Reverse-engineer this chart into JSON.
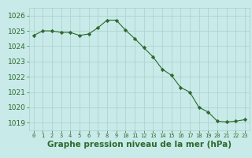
{
  "x": [
    0,
    1,
    2,
    3,
    4,
    5,
    6,
    7,
    8,
    9,
    10,
    11,
    12,
    13,
    14,
    15,
    16,
    17,
    18,
    19,
    20,
    21,
    22,
    23
  ],
  "y": [
    1024.7,
    1025.0,
    1025.0,
    1024.9,
    1024.9,
    1024.7,
    1024.8,
    1025.2,
    1025.7,
    1025.7,
    1025.05,
    1024.5,
    1023.9,
    1023.3,
    1022.5,
    1022.1,
    1021.3,
    1021.0,
    1020.0,
    1019.7,
    1019.1,
    1019.05,
    1019.1,
    1019.2
  ],
  "line_color": "#2d6a2d",
  "marker": "D",
  "marker_size": 2.2,
  "bg_color": "#c8eae8",
  "grid_color": "#aacfcc",
  "xlabel": "Graphe pression niveau de la mer (hPa)",
  "xlabel_color": "#2d6a2d",
  "xlabel_fontsize": 7.5,
  "tick_color": "#2d6a2d",
  "tick_fontsize": 6.5,
  "ylim": [
    1018.5,
    1026.5
  ],
  "yticks": [
    1019,
    1020,
    1021,
    1022,
    1023,
    1024,
    1025,
    1026
  ],
  "xticks": [
    0,
    1,
    2,
    3,
    4,
    5,
    6,
    7,
    8,
    9,
    10,
    11,
    12,
    13,
    14,
    15,
    16,
    17,
    18,
    19,
    20,
    21,
    22,
    23
  ]
}
